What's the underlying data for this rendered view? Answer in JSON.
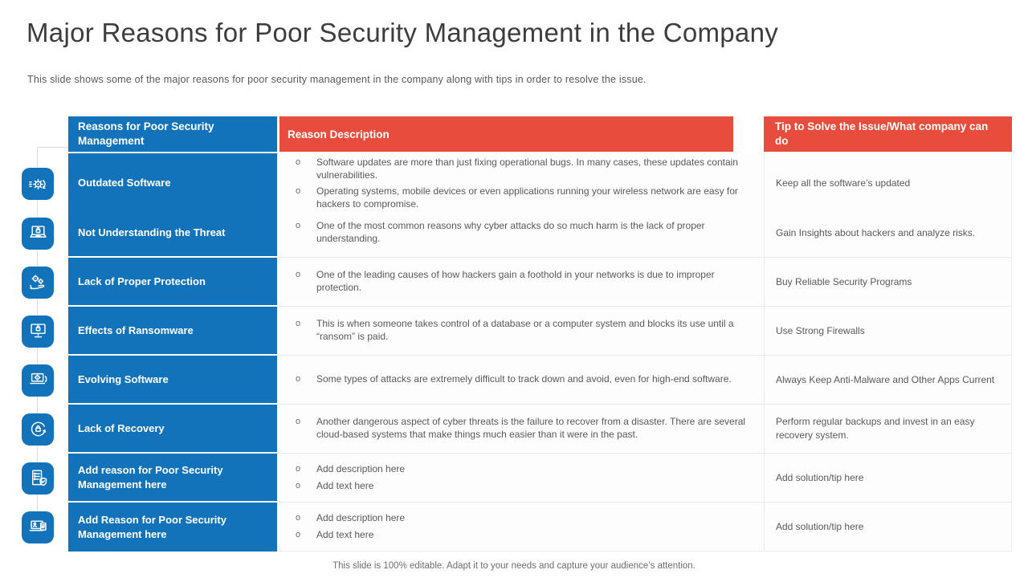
{
  "slide": {
    "title": "Major Reasons for Poor Security Management in the Company",
    "subtitle": "This slide shows some of the major reasons for poor security management in the company along with tips in order to resolve the issue.",
    "footer": "This slide is 100% editable. Adapt it to your needs and capture your audience’s attention."
  },
  "colors": {
    "blue": "#1273BA",
    "red": "#E74C3C",
    "cell_bg": "#fdfdfd",
    "cell_border": "#e9e9e9",
    "body_text": "#58595b",
    "title_text": "#3d3d3d"
  },
  "table": {
    "bullet_char": "o",
    "headers": [
      {
        "label": "Reasons for Poor Security Management",
        "color": "blue"
      },
      {
        "label": "Reason Description",
        "color": "red"
      },
      {
        "label": "Tip to Solve the Issue/What company can do",
        "color": "red"
      }
    ],
    "rows": [
      {
        "icon": "software-update-gear-icon",
        "reason": "Outdated Software",
        "description": [
          "Software updates are more than just fixing operational bugs. In many cases, these updates contain vulnerabilities.",
          "Operating systems, mobile devices or even applications running your wireless network are easy for hackers to compromise."
        ],
        "tip": "Keep all the software’s updated"
      },
      {
        "icon": "laptop-lock-icon",
        "reason": "Not Understanding the Threat",
        "description": [
          "One of the most common reasons why cyber attacks do so much harm is the lack of proper understanding."
        ],
        "tip": "Gain Insights about hackers and analyze risks."
      },
      {
        "icon": "hand-gears-icon",
        "reason": "Lack of Proper Protection",
        "description": [
          "One of the leading causes of how hackers gain a foothold in your networks is due to improper protection."
        ],
        "tip": "Buy Reliable Security Programs"
      },
      {
        "icon": "monitor-lock-icon",
        "reason": "Effects of Ransomware",
        "description": [
          "This is when someone takes control of a database or a computer system and blocks its use until a “ransom” is paid."
        ],
        "tip": "Use Strong Firewalls"
      },
      {
        "icon": "laptop-gear-icon",
        "reason": "Evolving Software",
        "description": [
          "Some types of attacks are extremely difficult to track down and avoid, even for high-end software."
        ],
        "tip": "Always Keep Anti-Malware and Other Apps Current"
      },
      {
        "icon": "recovery-lock-icon",
        "reason": "Lack of Recovery",
        "description": [
          "Another dangerous aspect of cyber threats is the failure to recover from a disaster. There are several cloud-based systems that make things much easier than it were in the past."
        ],
        "tip": "Perform regular backups and invest in an easy recovery system."
      },
      {
        "icon": "checklist-shield-icon",
        "reason": "Add reason for Poor Security Management here",
        "description": [
          "Add description here",
          "Add text here"
        ],
        "tip": "Add solution/tip here"
      },
      {
        "icon": "laptop-document-icon",
        "reason": "Add Reason for Poor Security Management here",
        "description": [
          "Add description here",
          "Add text here"
        ],
        "tip": "Add solution/tip here"
      }
    ]
  }
}
